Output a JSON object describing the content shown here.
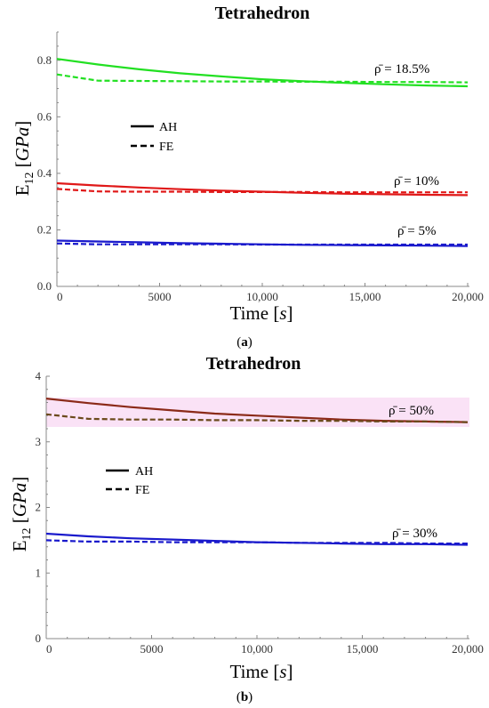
{
  "chart_data": [
    {
      "type": "line",
      "title": "Tetrahedron",
      "caption": "(a)",
      "xlabel": "Time [s]",
      "ylabel": "E12 [GPa]",
      "xlim": [
        0,
        20000
      ],
      "ylim": [
        0,
        0.9
      ],
      "x_ticks": [
        "0",
        "5000",
        "10,000",
        "15,000",
        "20,000"
      ],
      "y_ticks": [
        "0.0",
        "0.2",
        "0.4",
        "0.6",
        "0.8"
      ],
      "grid": false,
      "legend": {
        "placement": "upper-left-inside",
        "entries": [
          "AH",
          "FE"
        ]
      },
      "annotations": [
        "ρ̄ = 18.5%",
        "ρ̄ = 10%",
        "ρ̄ = 5%"
      ],
      "x": [
        0,
        2000,
        4000,
        6000,
        8000,
        10000,
        12000,
        14000,
        16000,
        18000,
        20000
      ],
      "series": [
        {
          "group": "ρ̄ = 18.5%",
          "style": "AH",
          "color": "#22e022",
          "values": [
            0.805,
            0.785,
            0.768,
            0.754,
            0.743,
            0.733,
            0.726,
            0.72,
            0.715,
            0.711,
            0.708
          ]
        },
        {
          "group": "ρ̄ = 18.5%",
          "style": "FE",
          "color": "#22e022",
          "values": [
            0.75,
            0.728,
            0.727,
            0.726,
            0.725,
            0.725,
            0.724,
            0.724,
            0.723,
            0.723,
            0.722
          ]
        },
        {
          "group": "ρ̄ = 10%",
          "style": "AH",
          "color": "#e01818",
          "values": [
            0.365,
            0.357,
            0.35,
            0.344,
            0.339,
            0.335,
            0.331,
            0.328,
            0.326,
            0.324,
            0.323
          ]
        },
        {
          "group": "ρ̄ = 10%",
          "style": "FE",
          "color": "#e01818",
          "values": [
            0.345,
            0.336,
            0.335,
            0.335,
            0.334,
            0.334,
            0.334,
            0.333,
            0.333,
            0.333,
            0.333
          ]
        },
        {
          "group": "ρ̄ = 5%",
          "style": "AH",
          "color": "#1a1acc",
          "values": [
            0.162,
            0.159,
            0.156,
            0.153,
            0.151,
            0.149,
            0.147,
            0.146,
            0.145,
            0.144,
            0.143
          ]
        },
        {
          "group": "ρ̄ = 5%",
          "style": "FE",
          "color": "#1a1acc",
          "values": [
            0.152,
            0.149,
            0.149,
            0.149,
            0.149,
            0.148,
            0.148,
            0.148,
            0.148,
            0.148,
            0.148
          ]
        }
      ]
    },
    {
      "type": "line",
      "title": "Tetrahedron",
      "caption": "(b)",
      "xlabel": "Time [s]",
      "ylabel": "E12 [GPa]",
      "xlim": [
        0,
        20000
      ],
      "ylim": [
        0,
        4
      ],
      "x_ticks": [
        "0",
        "5000",
        "10,000",
        "15,000",
        "20,000"
      ],
      "y_ticks": [
        "0",
        "1",
        "2",
        "3",
        "4"
      ],
      "grid": false,
      "legend": {
        "placement": "center-left-inside",
        "entries": [
          "AH",
          "FE"
        ]
      },
      "annotations": [
        "ρ̄ = 50%",
        "ρ̄ = 30%"
      ],
      "x": [
        0,
        2000,
        4000,
        6000,
        8000,
        10000,
        12000,
        14000,
        16000,
        18000,
        20000
      ],
      "series": [
        {
          "group": "ρ̄ = 50%",
          "style": "AH",
          "color": "#8b2a18",
          "values": [
            3.66,
            3.59,
            3.53,
            3.48,
            3.43,
            3.4,
            3.37,
            3.34,
            3.32,
            3.31,
            3.3
          ]
        },
        {
          "group": "ρ̄ = 50%",
          "style": "FE",
          "color": "#6b4a1c",
          "values": [
            3.42,
            3.35,
            3.34,
            3.34,
            3.33,
            3.33,
            3.32,
            3.32,
            3.31,
            3.31,
            3.3
          ]
        },
        {
          "group": "ρ̄ = 30%",
          "style": "AH",
          "color": "#1a1acc",
          "values": [
            1.6,
            1.56,
            1.53,
            1.51,
            1.49,
            1.47,
            1.46,
            1.45,
            1.44,
            1.44,
            1.43
          ]
        },
        {
          "group": "ρ̄ = 30%",
          "style": "FE",
          "color": "#1a1acc",
          "values": [
            1.5,
            1.48,
            1.48,
            1.47,
            1.47,
            1.47,
            1.46,
            1.46,
            1.46,
            1.45,
            1.45
          ]
        }
      ]
    }
  ],
  "style": {
    "axis_color": "#888888",
    "band_color": "#f6c6ee"
  }
}
